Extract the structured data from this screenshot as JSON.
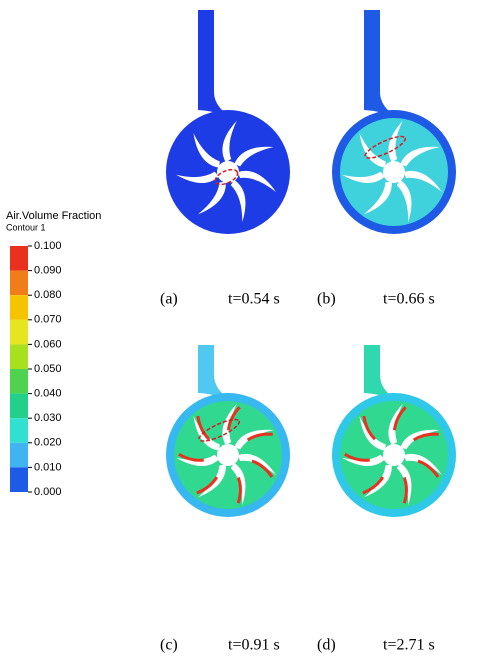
{
  "legend": {
    "title": "Air.Volume Fraction",
    "subtitle": "Contour 1",
    "labels": [
      "0.100",
      "0.090",
      "0.080",
      "0.070",
      "0.060",
      "0.050",
      "0.040",
      "0.030",
      "0.020",
      "0.010",
      "0.000"
    ]
  },
  "panels": [
    {
      "letter": "(a)",
      "time": "t=0.54 s"
    },
    {
      "letter": "(b)",
      "time": "t=0.66 s"
    },
    {
      "letter": "(c)",
      "time": "t=0.91 s"
    },
    {
      "letter": "(d)",
      "time": "t=2.71 s"
    }
  ]
}
